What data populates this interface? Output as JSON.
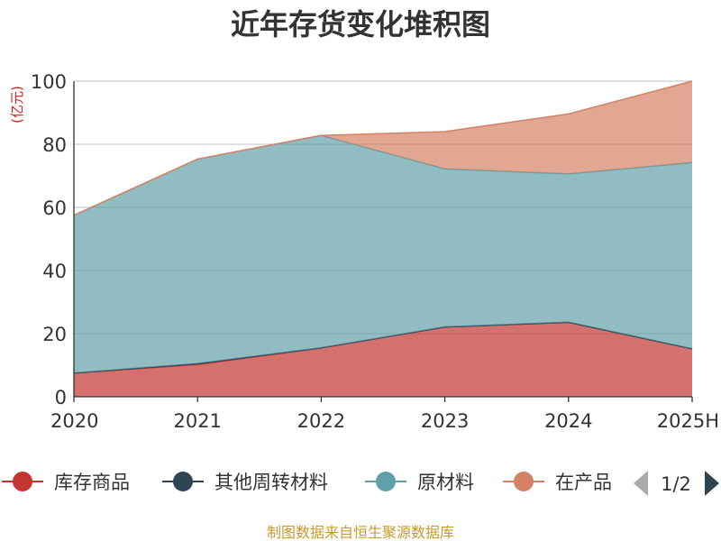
{
  "chart_data": {
    "type": "area",
    "stacked": true,
    "title": "近年存货变化堆积图",
    "unit_label": "(亿元)",
    "categories": [
      "2020",
      "2021",
      "2022",
      "2023",
      "2024",
      "2025H"
    ],
    "ylim": [
      0,
      100
    ],
    "yticks": [
      0,
      20,
      40,
      60,
      80,
      100
    ],
    "grid": true,
    "series": [
      {
        "name": "库存商品",
        "color": "#c23531",
        "values": [
          7.5,
          10.2,
          15.5,
          22.1,
          23.6,
          15.2
        ]
      },
      {
        "name": "其他周转材料",
        "color": "#2f4554",
        "values": [
          0.0,
          0.3,
          0.0,
          0.0,
          0.0,
          0.0
        ]
      },
      {
        "name": "原材料",
        "color": "#61a0a8",
        "values": [
          50.0,
          64.8,
          67.3,
          50.1,
          47.0,
          59.0
        ]
      },
      {
        "name": "在产品",
        "color": "#d48265",
        "values": [
          0.0,
          0.0,
          0.0,
          11.8,
          19.0,
          25.8
        ]
      }
    ],
    "legend": {
      "position": "bottom",
      "items": [
        "库存商品",
        "其他周转材料",
        "原材料",
        "在产品"
      ],
      "visible_items": [
        "库存商品",
        "其他周转材料",
        "原材料",
        "在产品"
      ],
      "page_indicator": "1/2"
    }
  },
  "footer": {
    "source": "制图数据来自恒生聚源数据库"
  }
}
